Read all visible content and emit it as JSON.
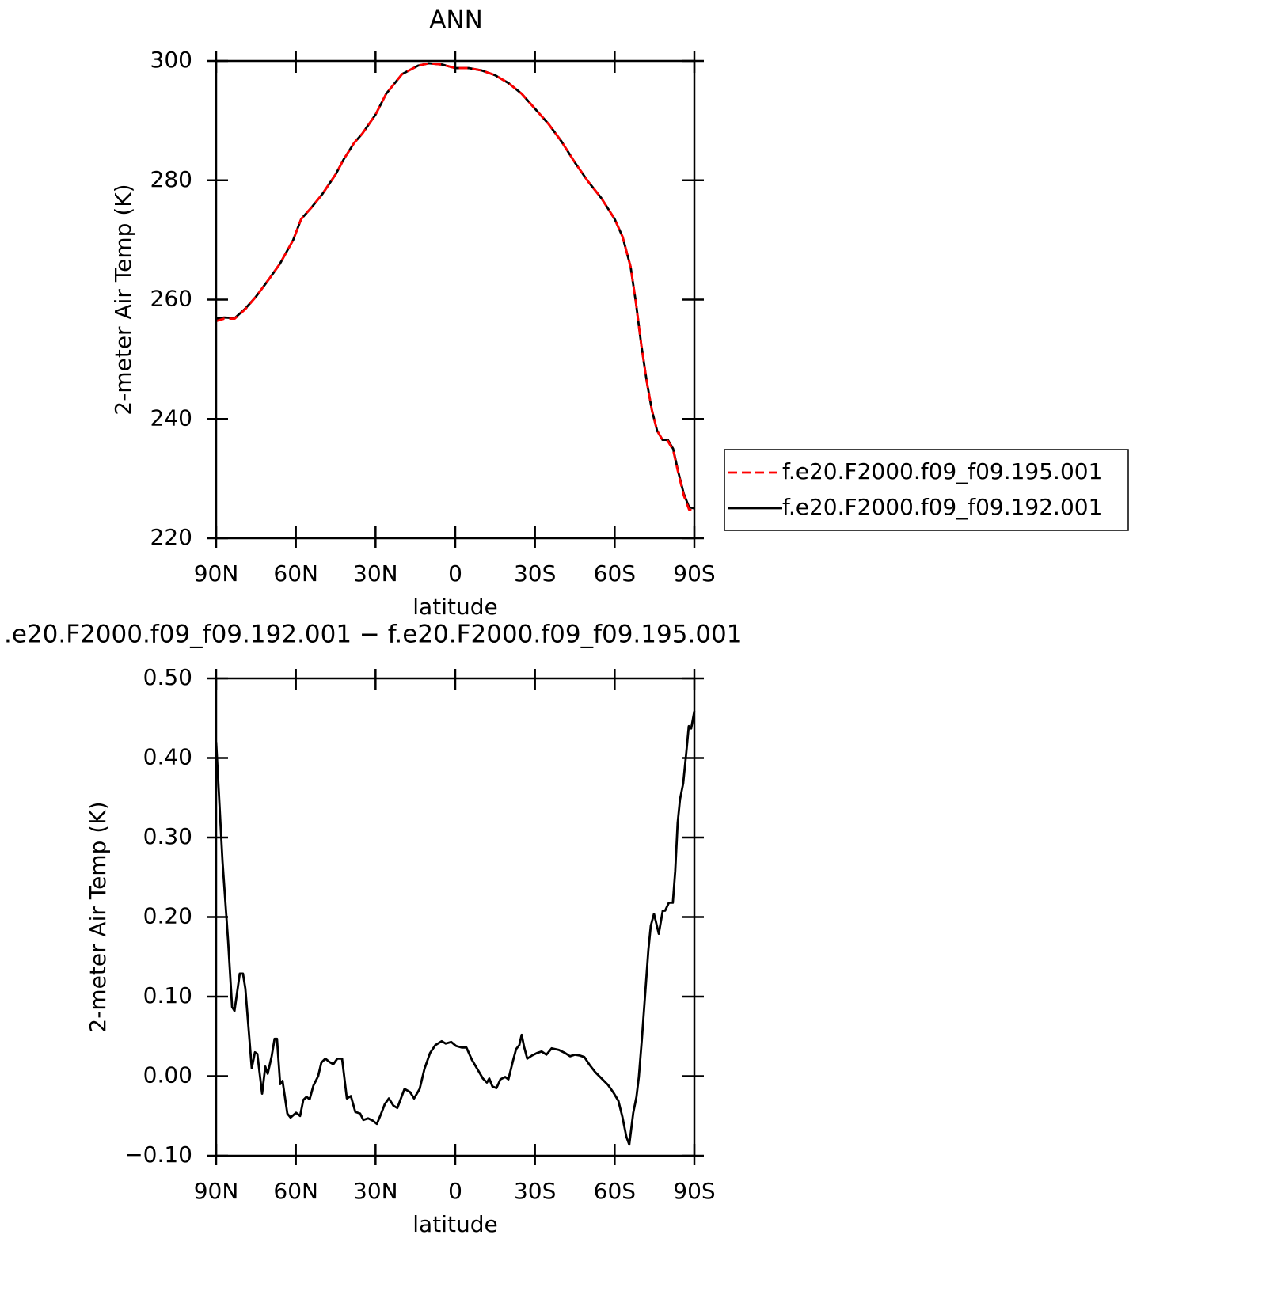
{
  "chart_data": [
    {
      "type": "line",
      "title": "ANN",
      "xlabel": "latitude",
      "ylabel": "2-meter Air Temp (K)",
      "xlim": [
        90,
        -90
      ],
      "xticks": [
        {
          "value": 90,
          "label": "90N"
        },
        {
          "value": 60,
          "label": "60N"
        },
        {
          "value": 30,
          "label": "30N"
        },
        0,
        {
          "value": -30,
          "label": "30S"
        },
        {
          "value": -60,
          "label": "60S"
        },
        {
          "value": -90,
          "label": "90S"
        }
      ],
      "ylim": [
        220,
        300
      ],
      "yticks": [
        220,
        240,
        260,
        280,
        300
      ],
      "legend": "outside-right",
      "x": [
        90,
        87,
        83,
        79,
        75,
        70,
        66,
        61,
        58,
        54,
        50,
        45,
        42,
        38,
        35,
        30,
        26,
        20,
        14,
        10,
        5,
        0,
        -5,
        -10,
        -15,
        -20,
        -25,
        -30,
        -35,
        -40,
        -45,
        -50,
        -55,
        -60,
        -63,
        -66,
        -68,
        -70,
        -72,
        -74,
        -76,
        -78,
        -80,
        -82,
        -84,
        -86,
        -88,
        -90
      ],
      "series": [
        {
          "name": "f.e20.F2000.f09_f09.195.001",
          "color": "#ff0000",
          "dashed": true,
          "values": [
            256.4,
            256.8,
            256.8,
            258.4,
            260.5,
            263.5,
            266,
            270,
            273.5,
            275.5,
            277.7,
            281,
            283.5,
            286.3,
            287.8,
            291,
            294.5,
            297.8,
            299.2,
            299.6,
            299.4,
            298.8,
            298.8,
            298.4,
            297.6,
            296.3,
            294.5,
            292,
            289.5,
            286.5,
            283,
            279.8,
            277,
            273.5,
            270.5,
            265.5,
            259.5,
            252.5,
            246.5,
            241.5,
            238,
            236.5,
            236.3,
            234.8,
            230.8,
            227.2,
            224.8,
            224.6
          ]
        },
        {
          "name": "f.e20.F2000.f09_f09.192.001",
          "color": "#000000",
          "dashed": false,
          "values": [
            256.8,
            257,
            256.9,
            258.5,
            260.5,
            263.5,
            266,
            270,
            273.5,
            275.5,
            277.7,
            281,
            283.5,
            286.3,
            287.8,
            291,
            294.5,
            297.8,
            299.2,
            299.6,
            299.4,
            298.8,
            298.8,
            298.4,
            297.6,
            296.3,
            294.5,
            292,
            289.5,
            286.5,
            283,
            279.8,
            277,
            273.5,
            270.5,
            265.5,
            259.5,
            252.5,
            246.5,
            241.5,
            238,
            236.5,
            236.5,
            235,
            231,
            227.5,
            225.2,
            225
          ]
        }
      ]
    },
    {
      "type": "line",
      "title": ".e20.F2000.f09_f09.192.001 − f.e20.F2000.f09_f09.195.001",
      "xlabel": "latitude",
      "ylabel": "2-meter Air Temp (K)",
      "xlim": [
        90,
        -90
      ],
      "xticks": [
        {
          "value": 90,
          "label": "90N"
        },
        {
          "value": 60,
          "label": "60N"
        },
        {
          "value": 30,
          "label": "30N"
        },
        0,
        {
          "value": -30,
          "label": "30S"
        },
        {
          "value": -60,
          "label": "60S"
        },
        {
          "value": -90,
          "label": "90S"
        }
      ],
      "ylim": [
        -0.1,
        0.5
      ],
      "yticks": [
        {
          "value": -0.1,
          "label": "−0.10"
        },
        {
          "value": 0,
          "label": "0.00"
        },
        {
          "value": 0.1,
          "label": "0.10"
        },
        {
          "value": 0.2,
          "label": "0.20"
        },
        {
          "value": 0.3,
          "label": "0.30"
        },
        {
          "value": 0.4,
          "label": "0.40"
        },
        {
          "value": 0.5,
          "label": "0.50"
        }
      ],
      "x": [
        90,
        87.6,
        85.5,
        84,
        83.1,
        81.1,
        79.9,
        79,
        77.8,
        76.6,
        75.4,
        74.5,
        72.7,
        71.5,
        70.6,
        69.1,
        68,
        67.1,
        65.9,
        65,
        63.2,
        62,
        59.9,
        58.4,
        57.2,
        56,
        54.8,
        53.4,
        51.6,
        50.4,
        48.9,
        47.4,
        45.9,
        44.4,
        42.6,
        40.8,
        39.3,
        37.6,
        35.8,
        34.6,
        32.8,
        31,
        29.5,
        28,
        26.5,
        25,
        23.3,
        21.8,
        19.1,
        17,
        15.5,
        13.4,
        11.6,
        9.5,
        7.5,
        5.1,
        3.6,
        1.5,
        -0.3,
        -2.4,
        -4.2,
        -6.2,
        -8.3,
        -10.4,
        -11.9,
        -12.8,
        -14,
        -15.5,
        -17,
        -18.8,
        -20,
        -21.7,
        -22.9,
        -24.1,
        -25,
        -25.9,
        -27.1,
        -28.9,
        -30.7,
        -32.5,
        -34.3,
        -36.3,
        -39,
        -41.4,
        -43.2,
        -45,
        -46.8,
        -48.6,
        -50.6,
        -52.7,
        -55.1,
        -57.5,
        -59.6,
        -61.4,
        -62.9,
        -64.4,
        -65.5,
        -67,
        -68.2,
        -69.1,
        -70.3,
        -71.5,
        -72.7,
        -73.6,
        -74.8,
        -76.6,
        -78.1,
        -79,
        -80.4,
        -81.9,
        -82.8,
        -83.7,
        -84.6,
        -85.8,
        -87,
        -87.9,
        -88.8,
        -90
      ],
      "series": [
        {
          "color": "#000000",
          "dashed": false,
          "values": [
            0.42,
            0.27,
            0.17,
            0.087,
            0.082,
            0.129,
            0.129,
            0.11,
            0.06,
            0.01,
            0.03,
            0.028,
            -0.022,
            0.012,
            0.003,
            0.025,
            0.047,
            0.047,
            -0.01,
            -0.006,
            -0.047,
            -0.052,
            -0.046,
            -0.05,
            -0.03,
            -0.026,
            -0.029,
            -0.012,
            0.0,
            0.017,
            0.022,
            0.018,
            0.015,
            0.022,
            0.022,
            -0.028,
            -0.025,
            -0.045,
            -0.047,
            -0.055,
            -0.053,
            -0.056,
            -0.06,
            -0.048,
            -0.035,
            -0.028,
            -0.037,
            -0.04,
            -0.016,
            -0.02,
            -0.028,
            -0.016,
            0.009,
            0.029,
            0.039,
            0.044,
            0.041,
            0.043,
            0.038,
            0.036,
            0.036,
            0.021,
            0.009,
            -0.003,
            -0.008,
            -0.003,
            -0.013,
            -0.015,
            -0.004,
            -0.001,
            -0.004,
            0.019,
            0.034,
            0.039,
            0.052,
            0.037,
            0.022,
            0.026,
            0.029,
            0.031,
            0.027,
            0.035,
            0.033,
            0.029,
            0.025,
            0.027,
            0.026,
            0.024,
            0.014,
            0.005,
            -0.003,
            -0.011,
            -0.021,
            -0.031,
            -0.051,
            -0.076,
            -0.086,
            -0.046,
            -0.026,
            -0.001,
            0.049,
            0.104,
            0.159,
            0.189,
            0.204,
            0.179,
            0.208,
            0.208,
            0.218,
            0.218,
            0.258,
            0.318,
            0.348,
            0.368,
            0.408,
            0.44,
            0.437,
            0.459
          ]
        }
      ]
    }
  ]
}
